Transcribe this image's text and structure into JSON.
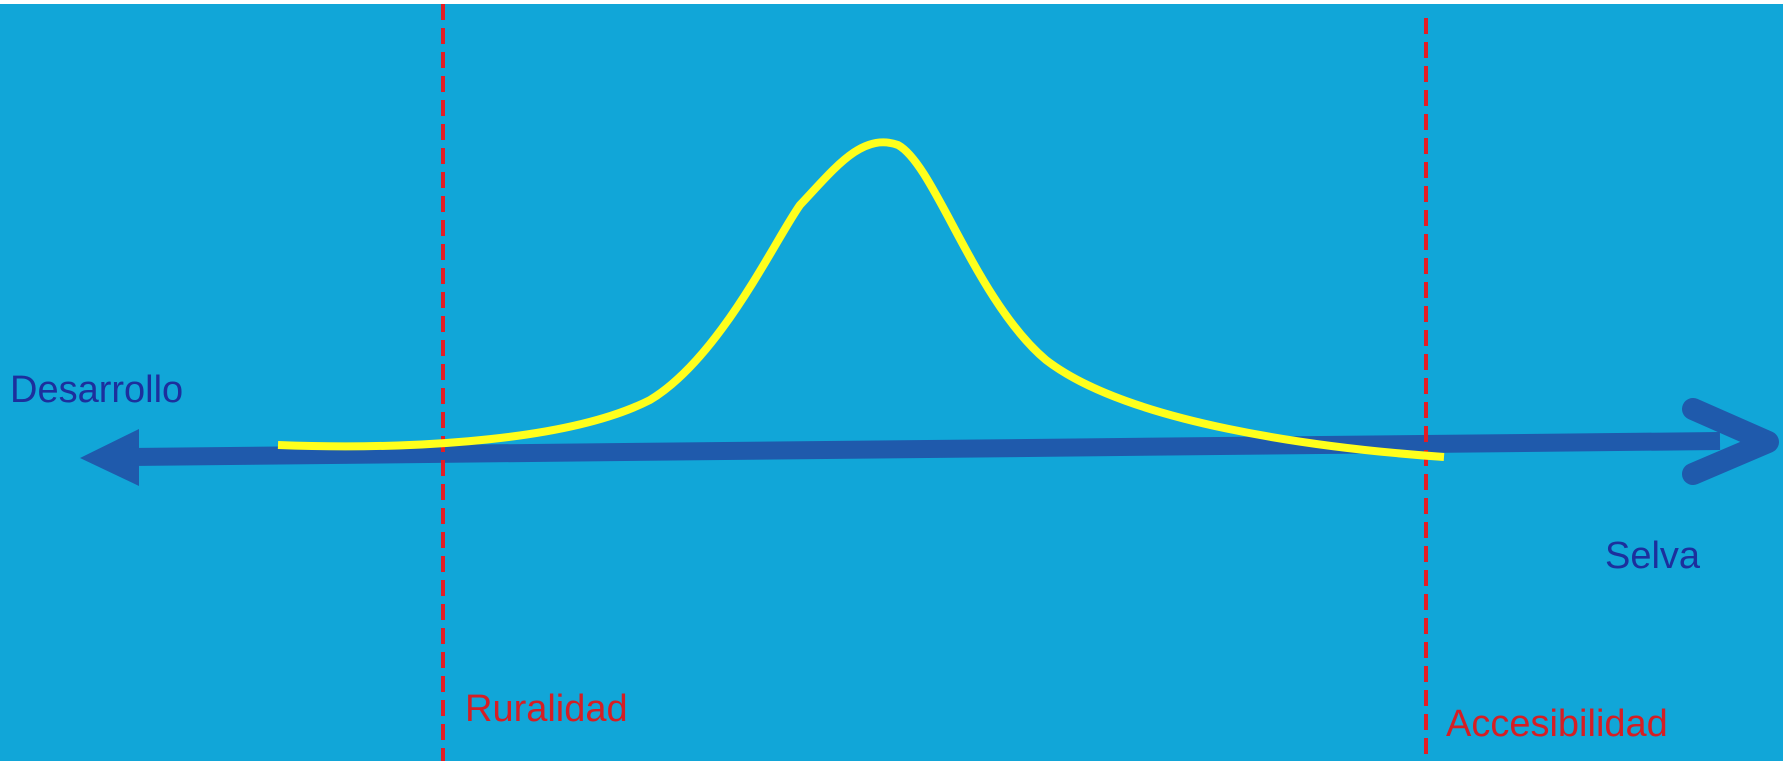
{
  "colors": {
    "background": "#11a6d8",
    "axis": "#1f5aac",
    "curve": "#ffff1c",
    "threshold": "#e31d25",
    "axis_label": "#1c2f9d",
    "threshold_label": "#d51e24"
  },
  "axis": {
    "left_label": "Desarrollo",
    "right_label": "Selva"
  },
  "thresholds": [
    {
      "label": "Ruralidad"
    },
    {
      "label": "Accesibilidad"
    }
  ]
}
